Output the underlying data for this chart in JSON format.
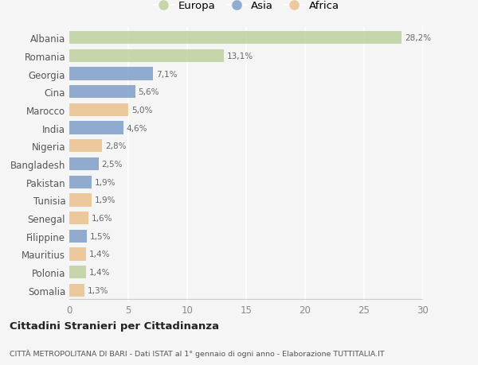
{
  "countries": [
    "Albania",
    "Romania",
    "Georgia",
    "Cina",
    "Marocco",
    "India",
    "Nigeria",
    "Bangladesh",
    "Pakistan",
    "Tunisia",
    "Senegal",
    "Filippine",
    "Mauritius",
    "Polonia",
    "Somalia"
  ],
  "values": [
    28.2,
    13.1,
    7.1,
    5.6,
    5.0,
    4.6,
    2.8,
    2.5,
    1.9,
    1.9,
    1.6,
    1.5,
    1.4,
    1.4,
    1.3
  ],
  "labels": [
    "28,2%",
    "13,1%",
    "7,1%",
    "5,6%",
    "5,0%",
    "4,6%",
    "2,8%",
    "2,5%",
    "1,9%",
    "1,9%",
    "1,6%",
    "1,5%",
    "1,4%",
    "1,4%",
    "1,3%"
  ],
  "continents": [
    "Europa",
    "Europa",
    "Asia",
    "Asia",
    "Africa",
    "Asia",
    "Africa",
    "Asia",
    "Asia",
    "Africa",
    "Africa",
    "Asia",
    "Africa",
    "Europa",
    "Africa"
  ],
  "colors": {
    "Europa": "#b5c98e",
    "Asia": "#6a8fc0",
    "Africa": "#e8b87a"
  },
  "bg_color": "#f5f5f5",
  "title": "Cittadini Stranieri per Cittadinanza",
  "subtitle": "CITTÀ METROPOLITANA DI BARI - Dati ISTAT al 1° gennaio di ogni anno - Elaborazione TUTTITALIA.IT",
  "xlim": [
    0,
    30
  ],
  "xticks": [
    0,
    5,
    10,
    15,
    20,
    25,
    30
  ],
  "grid_color": "#ffffff",
  "bar_alpha": 0.72,
  "bar_height": 0.72
}
